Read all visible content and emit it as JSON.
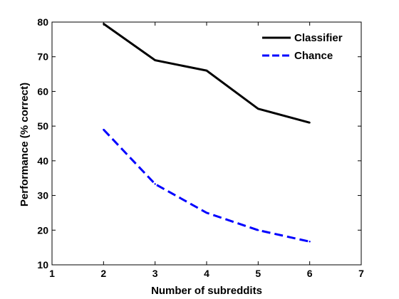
{
  "chart_data": {
    "type": "line",
    "xlabel": "Number of subreddits",
    "ylabel": "Performance (% correct)",
    "xlim": [
      1,
      7
    ],
    "ylim": [
      10,
      80
    ],
    "xticks": [
      1,
      2,
      3,
      4,
      5,
      6,
      7
    ],
    "yticks": [
      10,
      20,
      30,
      40,
      50,
      60,
      70,
      80
    ],
    "grid": false,
    "legend_position": "top-right",
    "series": [
      {
        "name": "Classifier",
        "color": "#000000",
        "style": "solid",
        "x": [
          2,
          3,
          4,
          5,
          6
        ],
        "values": [
          79.5,
          69,
          66,
          55,
          51
        ]
      },
      {
        "name": "Chance",
        "color": "#0000ff",
        "style": "dashed",
        "x": [
          2,
          3,
          4,
          5,
          6
        ],
        "values": [
          49,
          33.3,
          25,
          20,
          16.7
        ]
      }
    ]
  }
}
